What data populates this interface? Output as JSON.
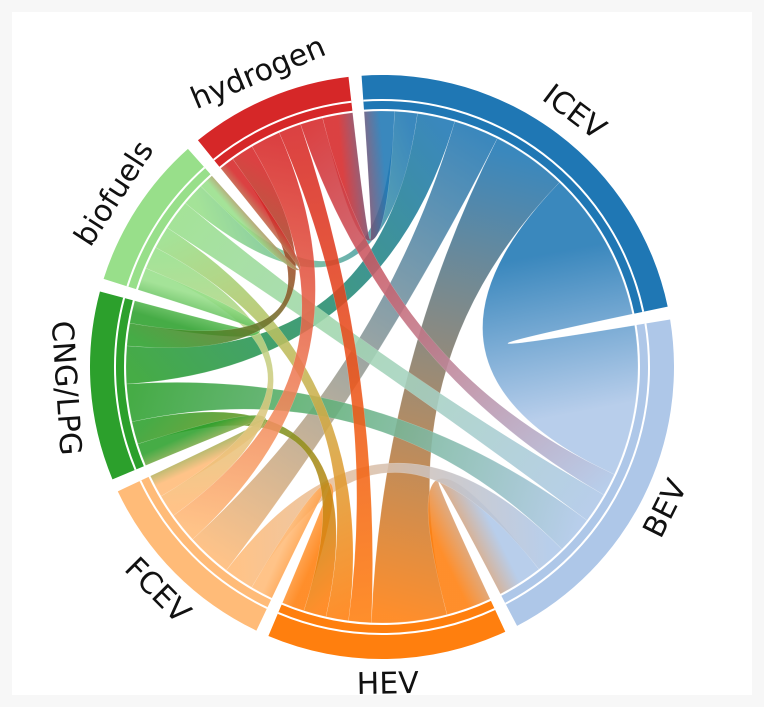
{
  "chart_data": {
    "type": "chord",
    "groups": [
      {
        "name": "ICEV",
        "color": "#1f77b4"
      },
      {
        "name": "BEV",
        "color": "#aec7e8"
      },
      {
        "name": "HEV",
        "color": "#ff7f0e"
      },
      {
        "name": "FCEV",
        "color": "#ffbb78"
      },
      {
        "name": "CNG/LPG",
        "color": "#2ca02c"
      },
      {
        "name": "biofuels",
        "color": "#98df8a"
      },
      {
        "name": "hydrogen",
        "color": "#d62728"
      }
    ],
    "links": [
      {
        "source": 0,
        "target": 1,
        "value": 20
      },
      {
        "source": 0,
        "target": 2,
        "value": 10
      },
      {
        "source": 0,
        "target": 3,
        "value": 6
      },
      {
        "source": 0,
        "target": 4,
        "value": 5
      },
      {
        "source": 0,
        "target": 5,
        "value": 3
      },
      {
        "source": 0,
        "target": 6,
        "value": 4
      },
      {
        "source": 1,
        "target": 2,
        "value": 6
      },
      {
        "source": 1,
        "target": 3,
        "value": 4
      },
      {
        "source": 1,
        "target": 4,
        "value": 5
      },
      {
        "source": 1,
        "target": 5,
        "value": 4
      },
      {
        "source": 1,
        "target": 6,
        "value": 3
      },
      {
        "source": 2,
        "target": 3,
        "value": 3
      },
      {
        "source": 2,
        "target": 4,
        "value": 3
      },
      {
        "source": 2,
        "target": 5,
        "value": 3
      },
      {
        "source": 2,
        "target": 6,
        "value": 3
      },
      {
        "source": 3,
        "target": 4,
        "value": 3
      },
      {
        "source": 3,
        "target": 5,
        "value": 3
      },
      {
        "source": 3,
        "target": 6,
        "value": 4
      },
      {
        "source": 4,
        "target": 5,
        "value": 3
      },
      {
        "source": 4,
        "target": 6,
        "value": 3
      },
      {
        "source": 5,
        "target": 6,
        "value": 2
      }
    ]
  }
}
